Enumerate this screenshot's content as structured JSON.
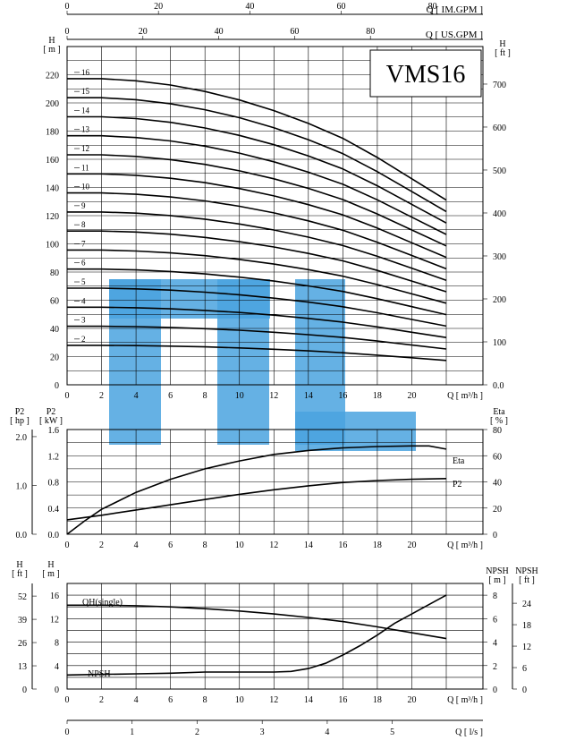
{
  "chart_data": {
    "type": "line",
    "title": "VMS16",
    "watermark_color": "#4aa3df",
    "top_axes": [
      {
        "label": "Q [ IM.GPM ]",
        "ticks": [
          "0",
          "20",
          "40",
          "60",
          "80"
        ],
        "max": 83
      },
      {
        "label": "Q [ US.GPM ]",
        "ticks": [
          "0",
          "20",
          "40",
          "60",
          "80"
        ],
        "max": 100
      }
    ],
    "bottom_axis_ls": {
      "label": "Q [ l/s ]",
      "ticks": [
        "0",
        "1",
        "2",
        "3",
        "4",
        "5"
      ],
      "max": 5.83
    },
    "q_axis": {
      "label": "Q [ m³/h ]",
      "ticks": [
        "0",
        "2",
        "4",
        "6",
        "8",
        "10",
        "12",
        "14",
        "16",
        "18",
        "20"
      ],
      "max": 22
    },
    "head_panel": {
      "ylabel_left": "H\n[ m ]",
      "ylabel_right": "H\n[ ft ]",
      "ylim": [
        0,
        240
      ],
      "yticks_left": [
        "0",
        "20",
        "40",
        "60",
        "80",
        "100",
        "120",
        "140",
        "160",
        "180",
        "200",
        "220"
      ],
      "yticks_right": [
        "0.0",
        "100",
        "200",
        "300",
        "400",
        "500",
        "600",
        "700"
      ],
      "stage_labels": [
        "2",
        "3",
        "4",
        "5",
        "6",
        "7",
        "8",
        "9",
        "10",
        "11",
        "12",
        "13",
        "14",
        "15",
        "16"
      ],
      "stages": [
        2,
        3,
        4,
        5,
        6,
        7,
        8,
        9,
        10,
        11,
        12,
        13,
        14,
        15,
        16
      ],
      "single_stage_q": [
        0,
        2,
        4,
        6,
        8,
        10,
        12,
        14,
        16,
        18,
        20,
        22
      ],
      "single_stage_h": [
        14.3,
        14.3,
        14.2,
        14.0,
        13.7,
        13.3,
        12.8,
        12.2,
        11.5,
        10.6,
        9.6,
        8.6
      ]
    },
    "power_panel": {
      "ylabel_left_hp": "P2\n[ hp ]",
      "ylabel_left_kw": "P2\n[ kW ]",
      "ylabel_right": "Eta\n[ % ]",
      "yticks_hp": [
        "0.0",
        "1.0",
        "2.0"
      ],
      "yticks_kw": [
        "0.0",
        "0.4",
        "0.8",
        "1.2",
        "1.6"
      ],
      "yticks_eta": [
        "0",
        "20",
        "40",
        "60",
        "80"
      ],
      "series": [
        {
          "name": "Eta",
          "x": [
            0,
            1,
            2,
            4,
            6,
            8,
            10,
            12,
            14,
            16,
            18,
            20,
            21,
            22
          ],
          "y": [
            0,
            10,
            19,
            32,
            42,
            50,
            56,
            61,
            64,
            66,
            67,
            67.5,
            67.5,
            65
          ]
        },
        {
          "name": "P2",
          "x": [
            0,
            2,
            4,
            6,
            8,
            10,
            12,
            14,
            16,
            18,
            20,
            22
          ],
          "y": [
            0.22,
            0.29,
            0.37,
            0.45,
            0.53,
            0.61,
            0.68,
            0.74,
            0.79,
            0.82,
            0.84,
            0.85
          ]
        }
      ]
    },
    "npsh_panel": {
      "ylabel_ft": "H\n[ ft ]",
      "ylabel_m": "H\n[ m ]",
      "ylabel_npsh_m": "NPSH\n[ m ]",
      "ylabel_npsh_ft": "NPSH\n[ ft ]",
      "yticks_ft": [
        "0",
        "13",
        "26",
        "39",
        "52"
      ],
      "yticks_m": [
        "0",
        "4",
        "8",
        "12",
        "16"
      ],
      "yticks_npsh_m": [
        "0",
        "2",
        "4",
        "6",
        "8"
      ],
      "yticks_npsh_ft": [
        "0",
        "6",
        "12",
        "18",
        "24"
      ],
      "series": [
        {
          "name": "QH(single)",
          "x": [
            0,
            2,
            4,
            6,
            8,
            10,
            12,
            14,
            16,
            18,
            20,
            22
          ],
          "y": [
            14.3,
            14.3,
            14.2,
            14.0,
            13.7,
            13.3,
            12.8,
            12.2,
            11.5,
            10.6,
            9.6,
            8.6
          ]
        },
        {
          "name": "NPSH",
          "x": [
            0,
            2,
            4,
            6,
            8,
            10,
            12,
            13,
            14,
            15,
            16,
            17,
            18,
            19,
            20,
            21,
            22
          ],
          "y": [
            1.2,
            1.25,
            1.3,
            1.35,
            1.45,
            1.45,
            1.45,
            1.5,
            1.75,
            2.2,
            2.9,
            3.7,
            4.6,
            5.6,
            6.4,
            7.2,
            8.0
          ]
        }
      ]
    }
  }
}
